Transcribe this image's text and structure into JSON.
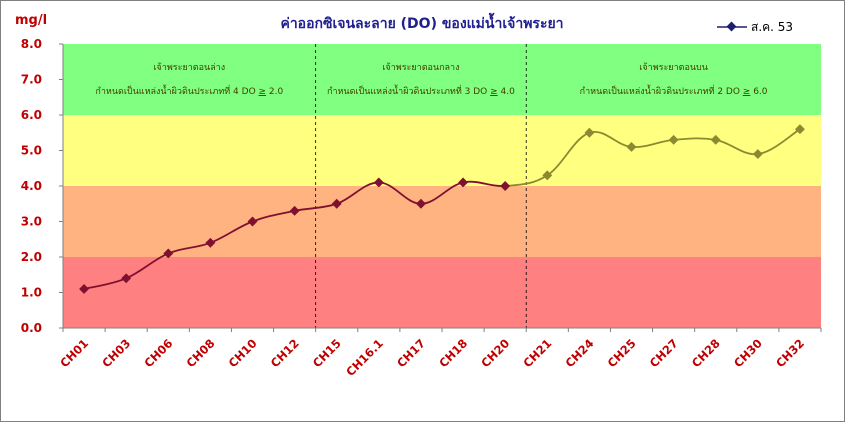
{
  "chart_data": {
    "type": "line",
    "title": "ค่าออกซิเจนละลาย (DO) ของแม่น้ำเจ้าพระยา",
    "ylabel": "mg/l",
    "xlabel": "",
    "ylim": [
      0,
      8
    ],
    "yticks": [
      "0.0",
      "1.0",
      "2.0",
      "3.0",
      "4.0",
      "5.0",
      "6.0",
      "7.0",
      "8.0"
    ],
    "categories": [
      "CH01",
      "CH03",
      "CH06",
      "CH08",
      "CH10",
      "CH12",
      "CH15",
      "CH16.1",
      "CH17",
      "CH18",
      "CH20",
      "CH21",
      "CH24",
      "CH25",
      "CH27",
      "CH28",
      "CH30",
      "CH32"
    ],
    "series": [
      {
        "name": "ส.ค. 53",
        "values": [
          1.1,
          1.4,
          2.1,
          2.4,
          3.0,
          3.3,
          3.5,
          4.1,
          3.5,
          4.1,
          4.0,
          4.3,
          5.5,
          5.1,
          5.3,
          5.3,
          4.9,
          5.6
        ]
      }
    ],
    "bands": [
      {
        "from": 0,
        "to": 2,
        "color": "#ff8080"
      },
      {
        "from": 2,
        "to": 4,
        "color": "#ffb380"
      },
      {
        "from": 4,
        "to": 6,
        "color": "#ffff80"
      },
      {
        "from": 6,
        "to": 8,
        "color": "#80ff80"
      }
    ],
    "zones": [
      {
        "title": "เจ้าพระยาตอนล่าง",
        "note_prefix": "กำหนดเป็นแหล่งน้ำผิวดินประเภทที่ 4 DO ",
        "note_ge": "≥",
        "note_value": "2.0",
        "start_index": 0,
        "end_index": 5
      },
      {
        "title": "เจ้าพระยาตอนกลาง",
        "note_prefix": "กำหนดเป็นแหล่งน้ำผิวดินประเภทที่ 3 DO ",
        "note_ge": "≥",
        "note_value": "4.0",
        "start_index": 6,
        "end_index": 10
      },
      {
        "title": "เจ้าพระยาตอนบน",
        "note_prefix": "กำหนดเป็นแหล่งน้ำผิวดินประเภทที่ 2 DO ",
        "note_ge": "≥",
        "note_value": "6.0",
        "start_index": 11,
        "end_index": 17
      }
    ],
    "line_colors": {
      "low": "#7f1030",
      "high": "#8a8a30"
    },
    "legend_position": "top-right",
    "grid": false
  }
}
